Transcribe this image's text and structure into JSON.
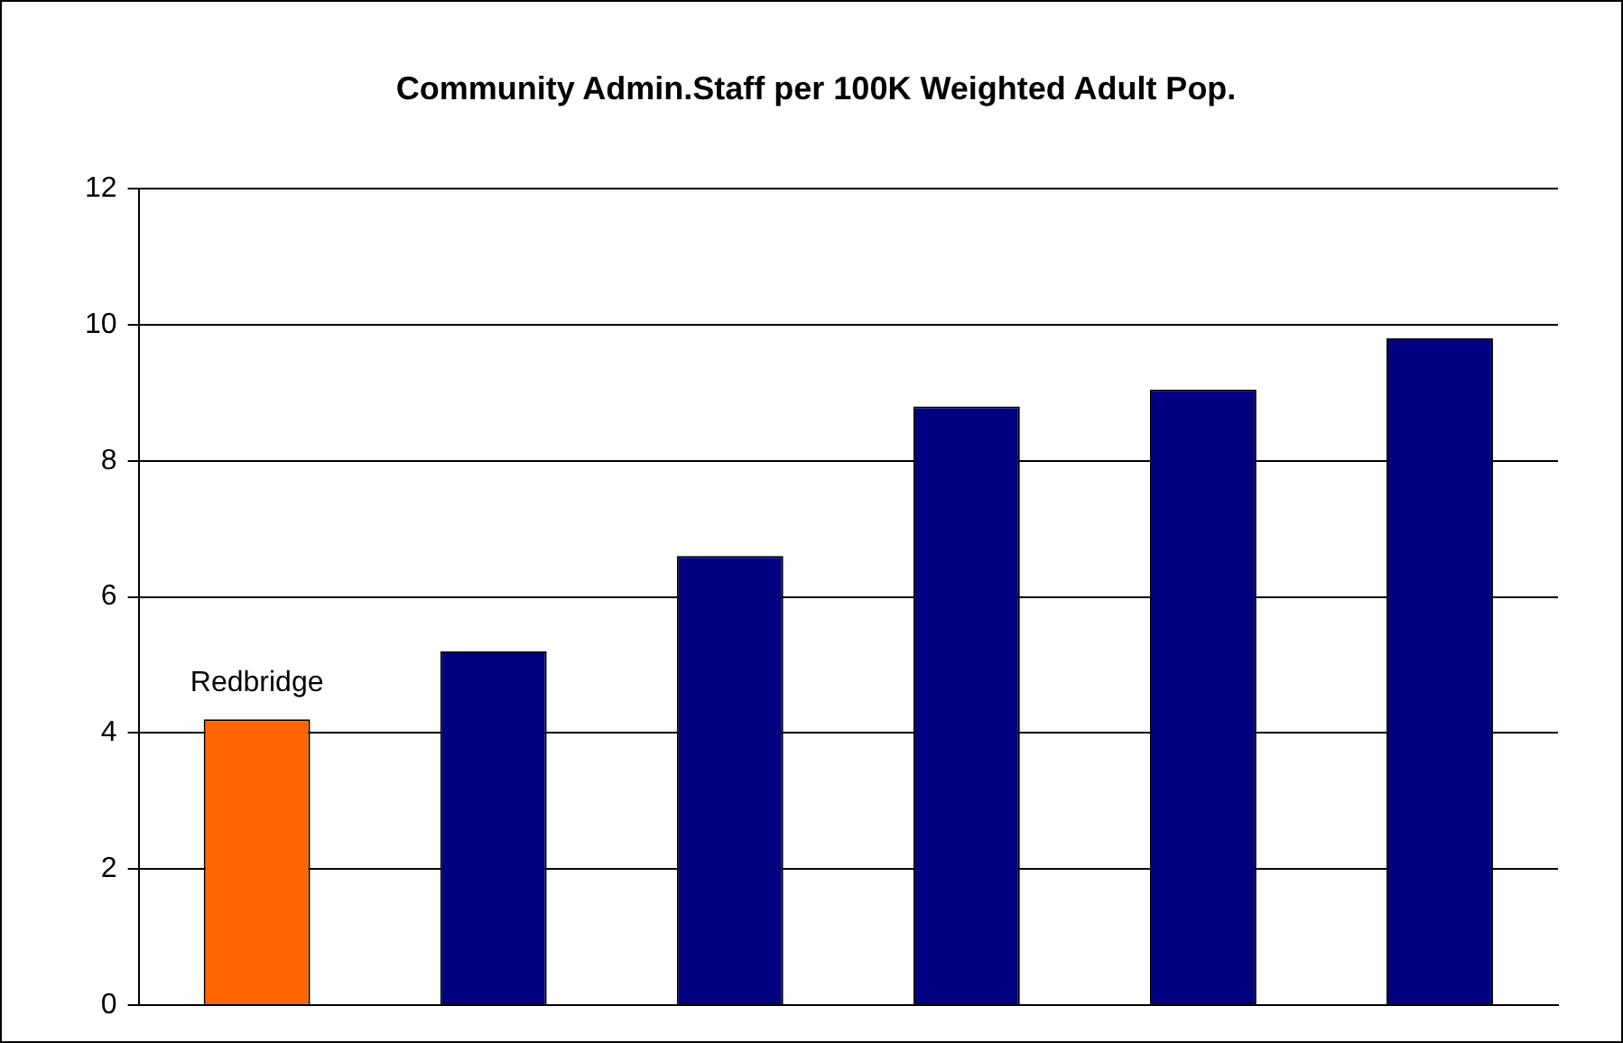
{
  "chart_data": {
    "type": "bar",
    "title": "Community Admin.Staff per 100K Weighted Adult Pop.",
    "categories": [
      null,
      null,
      null,
      null,
      null,
      null
    ],
    "values": [
      4.2,
      5.2,
      6.6,
      8.8,
      9.05,
      9.8
    ],
    "colors": [
      "#ff6600",
      "#000080",
      "#000080",
      "#000080",
      "#000080",
      "#000080"
    ],
    "value_labels": [
      "Redbridge",
      null,
      null,
      null,
      null,
      null
    ],
    "ylim": [
      0,
      12
    ],
    "yticks": [
      0,
      2,
      4,
      6,
      8,
      10,
      12
    ],
    "grid": "y",
    "legend": false
  }
}
